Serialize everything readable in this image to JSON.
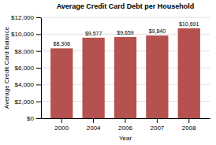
{
  "chart_data": {
    "type": "bar",
    "title": "Average Credit Card Debt per Household",
    "xlabel": "Year",
    "ylabel": "Average Credit Card Balance",
    "categories": [
      "2000",
      "2004",
      "2006",
      "2007",
      "2008"
    ],
    "values": [
      8308,
      9577,
      9659,
      9840,
      10691
    ],
    "value_labels": [
      "$8,308",
      "$9,577",
      "$9,659",
      "$9,840",
      "$10,691"
    ],
    "data_labels": true,
    "color": "#b5514e",
    "ylim": [
      0,
      12000
    ],
    "yticks": [
      {
        "value": 0,
        "label": "$0"
      },
      {
        "value": 2000,
        "label": "$2,000"
      },
      {
        "value": 4000,
        "label": "$4,000"
      },
      {
        "value": 6000,
        "label": "$6,000"
      },
      {
        "value": 8000,
        "label": "$8,000"
      },
      {
        "value": 10000,
        "label": "$10,000"
      },
      {
        "value": 12000,
        "label": "$12,000"
      }
    ],
    "grid": true
  }
}
